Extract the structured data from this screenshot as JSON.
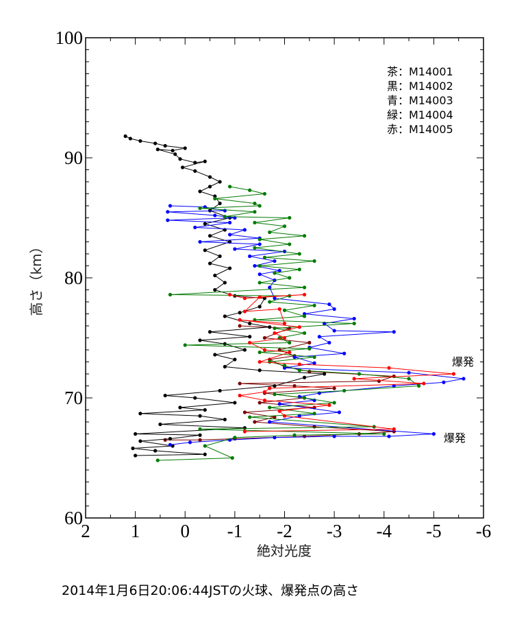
{
  "chart_data": {
    "type": "line",
    "title": "",
    "caption": "2014年1月6日20:06:44JSTの火球、爆発点の高さ",
    "xlabel": "絶対光度",
    "ylabel": "高さ（km）",
    "xlim": [
      2,
      -6
    ],
    "ylim": [
      60,
      100
    ],
    "x_ticks": [
      "2",
      "1",
      "0",
      "-1",
      "-2",
      "-3",
      "-4",
      "-5",
      "-6"
    ],
    "y_ticks": [
      "60",
      "70",
      "80",
      "90",
      "100"
    ],
    "legend_placement": "top-right",
    "annotations": [
      {
        "text": "爆発",
        "x": -5.4,
        "y": 72.8
      },
      {
        "text": "爆発",
        "x": -5.2,
        "y": 66.5
      }
    ],
    "series": [
      {
        "name": "茶：M14001",
        "color": "#7a0000",
        "points": [
          [
            -1.1,
            76.0
          ],
          [
            -2.1,
            75.8
          ],
          [
            -1.6,
            75.0
          ],
          [
            -2.5,
            74.6
          ],
          [
            -1.9,
            74.0
          ],
          [
            -2.2,
            73.5
          ],
          [
            -1.7,
            73.2
          ],
          [
            -2.0,
            72.6
          ],
          [
            -2.5,
            72.2
          ],
          [
            -4.2,
            71.8
          ],
          [
            -3.9,
            71.4
          ],
          [
            -1.1,
            71.2
          ],
          [
            -2.2,
            71.0
          ],
          [
            -3.0,
            70.8
          ],
          [
            -1.6,
            70.4
          ],
          [
            -2.4,
            70.0
          ],
          [
            -1.5,
            69.6
          ],
          [
            -2.6,
            69.2
          ],
          [
            -1.2,
            68.8
          ],
          [
            -1.8,
            68.4
          ],
          [
            -1.4,
            68.0
          ],
          [
            -2.6,
            67.6
          ],
          [
            -4.2,
            67.2
          ],
          [
            -3.5,
            67.0
          ],
          [
            -2.4,
            66.8
          ],
          [
            -1.0,
            66.6
          ],
          [
            -0.3,
            66.5
          ],
          [
            0.4,
            66.5
          ]
        ]
      },
      {
        "name": "黒：M14002",
        "color": "#000000",
        "points": [
          [
            1.2,
            91.8
          ],
          [
            1.1,
            91.6
          ],
          [
            0.9,
            91.4
          ],
          [
            0.6,
            91.2
          ],
          [
            0.4,
            91.0
          ],
          [
            0.0,
            90.8
          ],
          [
            0.25,
            90.6
          ],
          [
            0.55,
            90.7
          ],
          [
            0.2,
            90.3
          ],
          [
            0.1,
            89.9
          ],
          [
            -0.2,
            89.6
          ],
          [
            -0.4,
            89.7
          ],
          [
            0.05,
            89.2
          ],
          [
            -0.2,
            88.9
          ],
          [
            -0.5,
            88.4
          ],
          [
            -0.7,
            88.0
          ],
          [
            -0.5,
            87.6
          ],
          [
            -0.3,
            87.2
          ],
          [
            -0.6,
            86.8
          ],
          [
            -0.7,
            86.2
          ],
          [
            -0.5,
            85.6
          ],
          [
            -0.9,
            85.0
          ],
          [
            -0.4,
            84.5
          ],
          [
            -0.8,
            84.0
          ],
          [
            -0.5,
            83.5
          ],
          [
            -0.9,
            83.0
          ],
          [
            -0.4,
            82.3
          ],
          [
            -0.7,
            81.8
          ],
          [
            -0.5,
            81.2
          ],
          [
            -0.9,
            80.8
          ],
          [
            -0.6,
            80.2
          ],
          [
            -0.8,
            79.6
          ],
          [
            -0.6,
            79.0
          ],
          [
            -1.0,
            78.5
          ],
          [
            -1.6,
            78.3
          ],
          [
            -1.5,
            77.6
          ],
          [
            -1.1,
            77.1
          ],
          [
            -0.8,
            76.8
          ],
          [
            -1.3,
            76.2
          ],
          [
            -1.7,
            75.9
          ],
          [
            -0.5,
            75.5
          ],
          [
            -1.3,
            75.1
          ],
          [
            -0.3,
            74.8
          ],
          [
            -0.8,
            74.5
          ],
          [
            -1.2,
            74.0
          ],
          [
            -0.6,
            73.6
          ],
          [
            -1.0,
            73.2
          ],
          [
            -0.8,
            72.6
          ],
          [
            -1.5,
            72.3
          ],
          [
            -2.8,
            72.0
          ],
          [
            -2.4,
            71.7
          ],
          [
            -1.8,
            71.0
          ],
          [
            -0.7,
            70.6
          ],
          [
            0.4,
            70.2
          ],
          [
            -0.2,
            70.0
          ],
          [
            -1.0,
            69.6
          ],
          [
            0.1,
            69.2
          ],
          [
            -0.4,
            69.0
          ],
          [
            0.9,
            68.7
          ],
          [
            -0.3,
            68.5
          ],
          [
            -0.8,
            68.2
          ],
          [
            0.5,
            67.8
          ],
          [
            -1.2,
            67.5
          ],
          [
            1.0,
            67.0
          ],
          [
            -0.3,
            66.9
          ],
          [
            0.3,
            66.6
          ],
          [
            0.9,
            66.4
          ],
          [
            0.25,
            66.0
          ],
          [
            1.05,
            65.8
          ],
          [
            0.6,
            65.6
          ],
          [
            -0.4,
            65.3
          ],
          [
            1.0,
            65.2
          ]
        ]
      },
      {
        "name": "青：M14003",
        "color": "#0000ff",
        "points": [
          [
            0.3,
            86.0
          ],
          [
            -0.4,
            85.9
          ],
          [
            -0.8,
            85.6
          ],
          [
            0.35,
            85.5
          ],
          [
            -0.6,
            85.2
          ],
          [
            -1.0,
            85.0
          ],
          [
            0.35,
            84.8
          ],
          [
            -0.9,
            84.6
          ],
          [
            -0.2,
            84.2
          ],
          [
            -1.2,
            84.0
          ],
          [
            -0.9,
            83.6
          ],
          [
            -1.5,
            83.3
          ],
          [
            -0.3,
            83.0
          ],
          [
            -1.5,
            82.8
          ],
          [
            -1.0,
            82.4
          ],
          [
            -2.0,
            82.2
          ],
          [
            -1.3,
            81.8
          ],
          [
            -1.8,
            81.4
          ],
          [
            -1.4,
            81.0
          ],
          [
            -1.9,
            80.6
          ],
          [
            -1.5,
            80.3
          ],
          [
            -1.8,
            79.8
          ],
          [
            -1.7,
            79.2
          ],
          [
            -1.8,
            78.3
          ],
          [
            -2.9,
            77.8
          ],
          [
            -3.0,
            77.4
          ],
          [
            -2.4,
            77.0
          ],
          [
            -3.4,
            76.6
          ],
          [
            -2.8,
            76.2
          ],
          [
            -3.0,
            75.6
          ],
          [
            -4.2,
            75.5
          ],
          [
            -2.7,
            75.1
          ],
          [
            -2.9,
            74.6
          ],
          [
            -2.5,
            74.2
          ],
          [
            -3.2,
            73.7
          ],
          [
            -2.2,
            73.4
          ],
          [
            -2.6,
            72.9
          ],
          [
            -2.0,
            72.5
          ],
          [
            -4.5,
            72.1
          ],
          [
            -5.6,
            71.6
          ],
          [
            -5.2,
            71.3
          ],
          [
            -4.2,
            71.0
          ],
          [
            -2.7,
            70.4
          ],
          [
            -2.3,
            70.1
          ],
          [
            -2.6,
            69.8
          ],
          [
            -1.9,
            69.5
          ],
          [
            -3.1,
            68.8
          ],
          [
            -2.3,
            68.5
          ],
          [
            -1.7,
            68.0
          ],
          [
            -5.0,
            67.0
          ],
          [
            -4.1,
            66.8
          ],
          [
            -3.0,
            66.8
          ],
          [
            -1.8,
            66.7
          ],
          [
            -0.9,
            66.5
          ],
          [
            -0.1,
            66.3
          ],
          [
            0.3,
            66.1
          ]
        ]
      },
      {
        "name": "緑：M14004",
        "color": "#007a00",
        "points": [
          [
            -0.9,
            87.6
          ],
          [
            -1.3,
            87.3
          ],
          [
            -1.6,
            87.0
          ],
          [
            -0.6,
            86.6
          ],
          [
            -1.4,
            86.2
          ],
          [
            -1.5,
            86.0
          ],
          [
            -0.3,
            85.8
          ],
          [
            -1.4,
            85.5
          ],
          [
            -0.8,
            85.1
          ],
          [
            -2.1,
            85.0
          ],
          [
            -1.4,
            84.6
          ],
          [
            -2.0,
            84.3
          ],
          [
            -1.7,
            83.8
          ],
          [
            -2.4,
            83.5
          ],
          [
            -1.5,
            83.2
          ],
          [
            -2.1,
            82.8
          ],
          [
            -1.4,
            82.5
          ],
          [
            -2.3,
            82.0
          ],
          [
            -1.6,
            81.7
          ],
          [
            -2.6,
            81.4
          ],
          [
            -1.5,
            81.0
          ],
          [
            -2.3,
            80.7
          ],
          [
            -1.8,
            80.4
          ],
          [
            -2.1,
            80.0
          ],
          [
            -1.5,
            79.6
          ],
          [
            -2.4,
            79.2
          ],
          [
            0.3,
            78.6
          ],
          [
            -2.1,
            78.5
          ],
          [
            -1.7,
            78.0
          ],
          [
            -2.6,
            77.7
          ],
          [
            -2.0,
            77.3
          ],
          [
            -2.4,
            76.8
          ],
          [
            -1.4,
            76.5
          ],
          [
            -3.4,
            76.2
          ],
          [
            -1.8,
            75.8
          ],
          [
            -2.4,
            75.4
          ],
          [
            -1.9,
            75.0
          ],
          [
            -2.1,
            74.6
          ],
          [
            0.0,
            74.4
          ],
          [
            -2.5,
            74.1
          ],
          [
            -1.5,
            73.8
          ],
          [
            -2.6,
            73.4
          ],
          [
            -1.7,
            73.0
          ],
          [
            -2.0,
            72.7
          ],
          [
            -2.3,
            72.3
          ],
          [
            -3.5,
            72.0
          ],
          [
            -4.5,
            71.6
          ],
          [
            -4.7,
            71.0
          ],
          [
            -3.2,
            70.6
          ],
          [
            -1.8,
            70.3
          ],
          [
            -2.4,
            70.0
          ],
          [
            -3.0,
            69.6
          ],
          [
            -1.7,
            69.2
          ],
          [
            -2.6,
            68.7
          ],
          [
            -1.3,
            68.4
          ],
          [
            -3.8,
            67.6
          ],
          [
            -0.3,
            67.4
          ],
          [
            -4.0,
            67.0
          ],
          [
            -2.2,
            66.9
          ],
          [
            -1.0,
            66.7
          ],
          [
            -0.4,
            66.0
          ],
          [
            -0.95,
            65.0
          ],
          [
            0.55,
            64.8
          ]
        ]
      },
      {
        "name": "赤：M14005",
        "color": "#ff0000",
        "points": [
          [
            -0.9,
            78.6
          ],
          [
            -1.2,
            78.3
          ],
          [
            -2.4,
            78.6
          ],
          [
            -1.5,
            78.4
          ],
          [
            -1.2,
            77.2
          ],
          [
            -1.9,
            77.4
          ],
          [
            -2.0,
            76.2
          ],
          [
            -1.1,
            76.5
          ],
          [
            -2.3,
            75.9
          ],
          [
            -1.8,
            75.4
          ],
          [
            -2.0,
            75.0
          ],
          [
            -1.3,
            74.6
          ],
          [
            -1.6,
            74.0
          ],
          [
            -2.1,
            73.8
          ],
          [
            -1.5,
            73.0
          ],
          [
            -2.3,
            72.8
          ],
          [
            -4.1,
            72.5
          ],
          [
            -5.4,
            72.0
          ],
          [
            -3.4,
            71.6
          ],
          [
            -4.8,
            71.2
          ],
          [
            -1.7,
            70.8
          ],
          [
            -1.6,
            70.5
          ],
          [
            -1.1,
            70.2
          ],
          [
            -1.6,
            69.8
          ],
          [
            -2.9,
            69.4
          ],
          [
            -1.9,
            68.9
          ],
          [
            -2.0,
            68.5
          ],
          [
            -4.2,
            67.4
          ],
          [
            -1.2,
            67.2
          ]
        ]
      }
    ]
  }
}
